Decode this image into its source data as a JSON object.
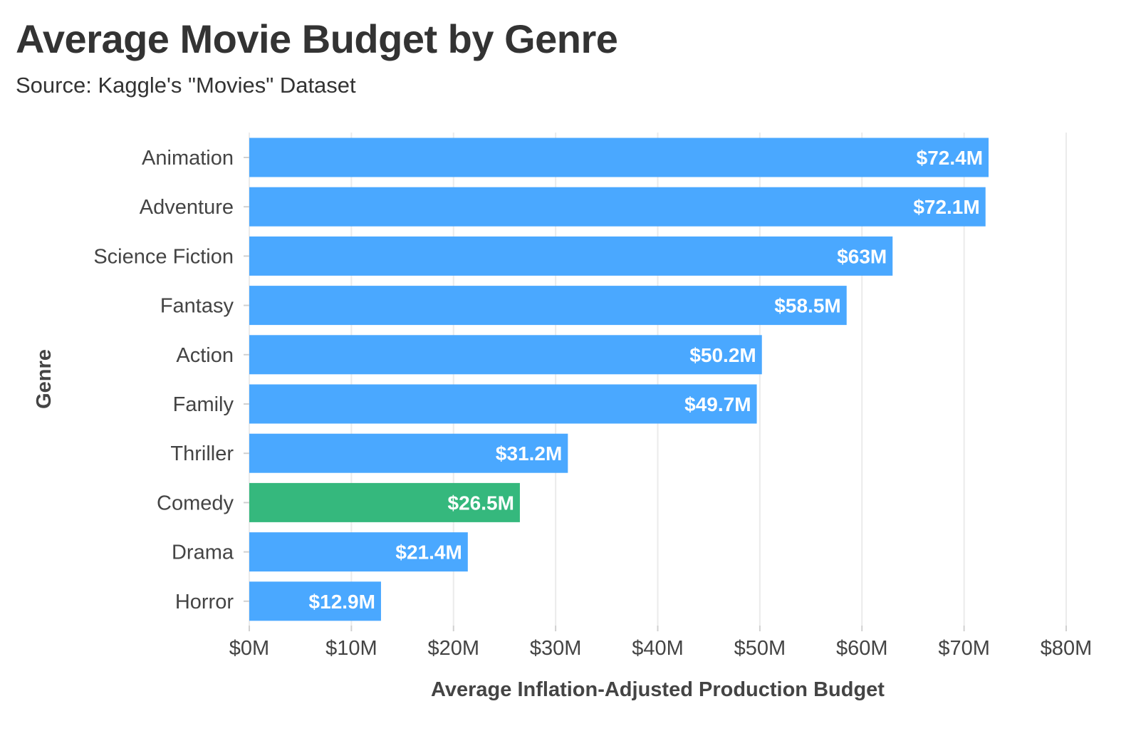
{
  "title": "Average Movie Budget by Genre",
  "subtitle": "Source: Kaggle's \"Movies\" Dataset",
  "chart_data": {
    "type": "bar",
    "orientation": "horizontal",
    "categories": [
      "Animation",
      "Adventure",
      "Science Fiction",
      "Fantasy",
      "Action",
      "Family",
      "Thriller",
      "Comedy",
      "Drama",
      "Horror"
    ],
    "values": [
      72.4,
      72.1,
      63,
      58.5,
      50.2,
      49.7,
      31.2,
      26.5,
      21.4,
      12.9
    ],
    "data_labels": [
      "$72.4M",
      "$72.1M",
      "$63M",
      "$58.5M",
      "$50.2M",
      "$49.7M",
      "$31.2M",
      "$26.5M",
      "$21.4M",
      "$12.9M"
    ],
    "highlight": "Comedy",
    "xlabel": "Average Inflation-Adjusted Production Budget",
    "ylabel": "Genre",
    "xlim": [
      0,
      80
    ],
    "xticks": [
      0,
      10,
      20,
      30,
      40,
      50,
      60,
      70,
      80
    ],
    "xtick_labels": [
      "$0M",
      "$10M",
      "$20M",
      "$30M",
      "$40M",
      "$50M",
      "$60M",
      "$70M",
      "$80M"
    ],
    "grid": "vertical",
    "colors": {
      "bar": "#4aa8ff",
      "highlight": "#35b87d",
      "grid": "#ebebeb",
      "text": "#333333"
    }
  }
}
